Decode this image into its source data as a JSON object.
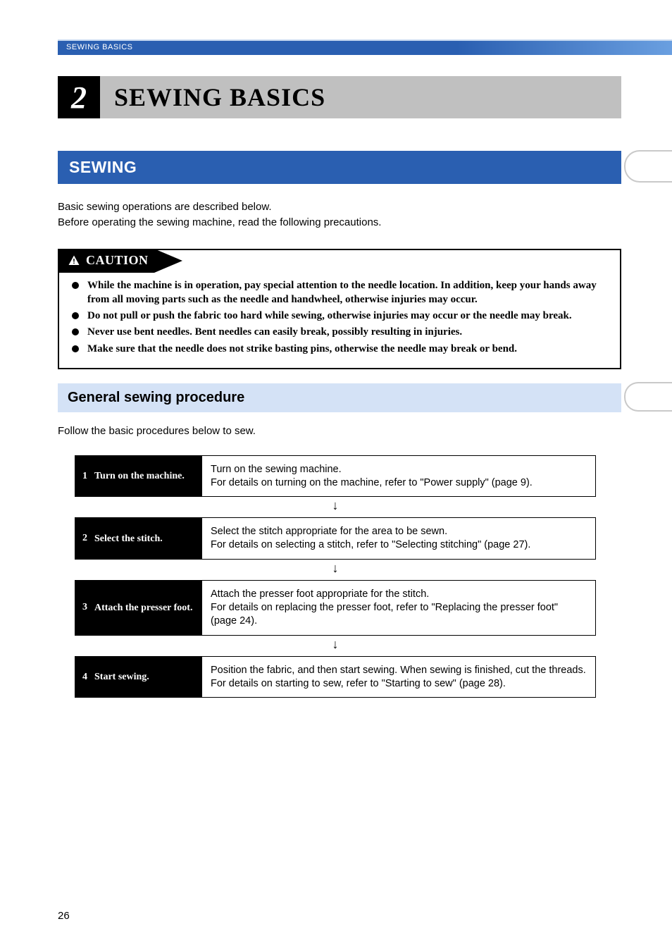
{
  "header": {
    "breadcrumb": "SEWING BASICS"
  },
  "chapter": {
    "number": "2",
    "title": "SEWING BASICS"
  },
  "section": {
    "title": "SEWING",
    "intro_line1": "Basic sewing operations are described below.",
    "intro_line2": "Before operating the sewing machine, read the following precautions."
  },
  "caution": {
    "label": "CAUTION",
    "items": [
      "While the machine is in operation, pay special attention to the needle location. In addition, keep your hands away from all moving parts such as the needle and handwheel, otherwise injuries may occur.",
      "Do not pull or push the fabric too hard while sewing, otherwise injuries may occur or the needle may break.",
      "Never use bent needles. Bent needles can easily break, possibly resulting in injuries.",
      "Make sure that the needle does not strike basting pins, otherwise the needle may break or bend."
    ]
  },
  "subsection": {
    "title": "General sewing procedure",
    "intro": "Follow the basic procedures below to sew."
  },
  "steps": [
    {
      "num": "1",
      "title": "Turn on the machine.",
      "desc": "Turn on the sewing machine.\nFor details on turning on the machine, refer to \"Power supply\" (page 9)."
    },
    {
      "num": "2",
      "title": "Select the stitch.",
      "desc": "Select the stitch appropriate for the area to be sewn.\nFor details on selecting a stitch, refer to \"Selecting stitching\" (page 27)."
    },
    {
      "num": "3",
      "title": "Attach the presser foot.",
      "desc": "Attach the presser foot appropriate for the stitch.\nFor details on replacing the presser foot, refer to \"Replacing the presser foot\" (page 24)."
    },
    {
      "num": "4",
      "title": "Start sewing.",
      "desc": "Position the fabric, and then start sewing. When sewing is finished, cut the threads.\nFor details on starting to sew, refer to \"Starting to sew\" (page 28)."
    }
  ],
  "page_number": "26",
  "colors": {
    "header_blue": "#2a5fb1",
    "header_blue_light": "#6a9fe0",
    "sub_blue": "#d4e2f6",
    "gray_bar": "#c0c0c0",
    "tab_border": "#c9c9c9"
  }
}
